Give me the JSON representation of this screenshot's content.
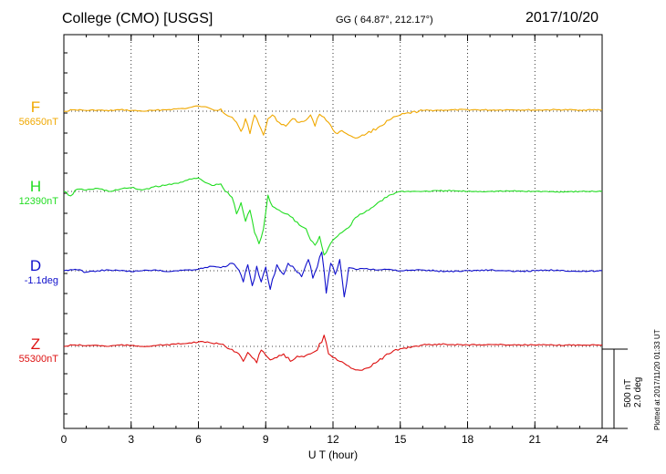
{
  "header": {
    "title": "College (CMO)  [USGS]",
    "coords": "GG ( 64.87°, 212.17°)",
    "date": "2017/10/20"
  },
  "plotted_note": "Plotted at 2017/11/20 01:33 UT",
  "scale_bar": {
    "line1": "500 nT",
    "line2": "2.0 deg"
  },
  "channels": [
    {
      "name": "F",
      "baseline": "56650nT",
      "color": "#f0a800"
    },
    {
      "name": "H",
      "baseline": "12390nT",
      "color": "#22dd22"
    },
    {
      "name": "D",
      "baseline": "-1.1deg",
      "color": "#1010cc"
    },
    {
      "name": "Z",
      "baseline": "55300nT",
      "color": "#dd1010"
    }
  ],
  "chart_data": {
    "type": "line",
    "xlabel": "U T (hour)",
    "xlim": [
      0,
      24
    ],
    "xticks": [
      0,
      3,
      6,
      9,
      12,
      15,
      18,
      21,
      24
    ],
    "grid": true,
    "series": [
      {
        "name": "F",
        "color": "#f0a800",
        "x": [
          0,
          0.5,
          1,
          1.5,
          2,
          2.5,
          3,
          3.5,
          4,
          4.5,
          5,
          5.5,
          6,
          6.2,
          6.5,
          6.8,
          7,
          7.2,
          7.5,
          7.7,
          7.9,
          8.1,
          8.3,
          8.5,
          8.7,
          8.9,
          9.1,
          9.3,
          9.6,
          9.9,
          10.2,
          10.5,
          10.8,
          11,
          11.2,
          11.4,
          11.6,
          11.8,
          12,
          12.2,
          12.4,
          12.6,
          12.8,
          13,
          13.2,
          13.5,
          14,
          14.5,
          15,
          16,
          17,
          18,
          19,
          20,
          21,
          22,
          23,
          24
        ],
        "y": [
          0,
          20,
          10,
          15,
          5,
          20,
          10,
          0,
          10,
          20,
          30,
          40,
          70,
          60,
          40,
          10,
          30,
          -40,
          -80,
          -150,
          -270,
          -100,
          -300,
          -50,
          -180,
          -320,
          -100,
          -50,
          -150,
          -200,
          -100,
          -150,
          -120,
          -50,
          -200,
          -40,
          -80,
          -150,
          -250,
          -300,
          -260,
          -300,
          -330,
          -360,
          -340,
          -300,
          -220,
          -120,
          -50,
          10,
          15,
          20,
          15,
          20,
          15,
          20,
          15,
          20
        ]
      },
      {
        "name": "H",
        "color": "#22dd22",
        "x": [
          0,
          0.3,
          0.6,
          1,
          1.5,
          2,
          2.5,
          3,
          3.5,
          4,
          4.5,
          5,
          5.5,
          6,
          6.3,
          6.6,
          7,
          7.2,
          7.5,
          7.7,
          7.9,
          8.1,
          8.3,
          8.5,
          8.7,
          8.9,
          9.1,
          9.3,
          9.6,
          9.9,
          10.2,
          10.5,
          10.8,
          11,
          11.2,
          11.4,
          11.6,
          11.8,
          12,
          12.2,
          12.4,
          12.6,
          12.8,
          13,
          13.3,
          13.6,
          14,
          14.5,
          15,
          16,
          17,
          18,
          19,
          20,
          21,
          22,
          23,
          24
        ],
        "y": [
          0,
          -60,
          30,
          20,
          40,
          0,
          30,
          50,
          20,
          60,
          80,
          110,
          150,
          180,
          120,
          80,
          100,
          0,
          -80,
          -300,
          -150,
          -400,
          -250,
          -550,
          -700,
          -500,
          -50,
          -200,
          -250,
          -300,
          -350,
          -450,
          -500,
          -650,
          -720,
          -600,
          -850,
          -750,
          -650,
          -600,
          -550,
          -500,
          -450,
          -350,
          -300,
          -250,
          -150,
          -50,
          0,
          0,
          10,
          0,
          0,
          5,
          0,
          -5,
          0,
          0
        ]
      },
      {
        "name": "D",
        "color": "#1010cc",
        "x": [
          0,
          0.5,
          1,
          1.5,
          2,
          2.5,
          3,
          3.5,
          4,
          4.5,
          5,
          5.5,
          6,
          6.5,
          7,
          7.5,
          7.8,
          8,
          8.2,
          8.4,
          8.6,
          8.8,
          9,
          9.2,
          9.5,
          9.8,
          10,
          10.3,
          10.6,
          10.9,
          11.1,
          11.3,
          11.5,
          11.7,
          11.9,
          12.1,
          12.3,
          12.5,
          12.7,
          13,
          13.5,
          14,
          14.5,
          15,
          16,
          17,
          18,
          19,
          20,
          21,
          22,
          23,
          24
        ],
        "y": [
          0,
          20,
          -20,
          0,
          10,
          0,
          -10,
          0,
          10,
          -10,
          0,
          10,
          20,
          60,
          40,
          100,
          10,
          -150,
          80,
          -200,
          60,
          -150,
          50,
          -250,
          80,
          -50,
          100,
          20,
          -80,
          150,
          -100,
          50,
          250,
          -300,
          100,
          -50,
          150,
          -350,
          40,
          20,
          30,
          10,
          20,
          0,
          10,
          -10,
          0,
          10,
          -10,
          0,
          10,
          -10,
          0
        ]
      },
      {
        "name": "Z",
        "color": "#dd1010",
        "x": [
          0,
          0.5,
          1,
          1.5,
          2,
          2.5,
          3,
          3.5,
          4,
          4.5,
          5,
          5.5,
          6,
          6.5,
          7,
          7.5,
          7.8,
          8,
          8.2,
          8.4,
          8.6,
          8.8,
          9,
          9.2,
          9.5,
          9.8,
          10.1,
          10.4,
          10.7,
          11,
          11.3,
          11.6,
          11.8,
          12,
          12.3,
          12.6,
          12.9,
          13.2,
          13.5,
          14,
          14.5,
          15,
          16,
          17,
          18,
          19,
          20,
          21,
          22,
          23,
          24
        ],
        "y": [
          0,
          20,
          10,
          15,
          0,
          20,
          10,
          0,
          10,
          20,
          30,
          40,
          60,
          50,
          30,
          -40,
          -100,
          -200,
          -80,
          -150,
          -220,
          -50,
          -120,
          -180,
          -150,
          -100,
          -200,
          -130,
          -140,
          -100,
          -50,
          150,
          -100,
          -150,
          -200,
          -250,
          -300,
          -320,
          -290,
          -200,
          -100,
          -30,
          20,
          30,
          20,
          25,
          20,
          20,
          15,
          20,
          20
        ]
      }
    ]
  }
}
